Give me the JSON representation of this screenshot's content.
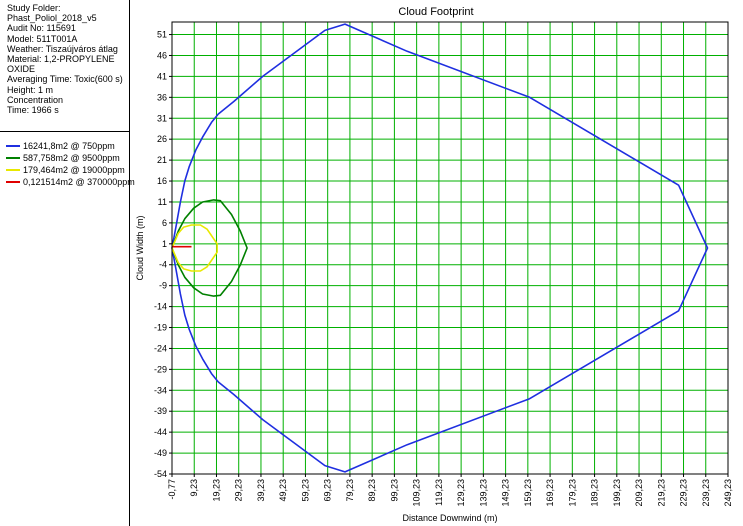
{
  "info_lines": [
    "Study Folder:",
    "Phast_Poliol_2018_v5",
    "Audit No: 115691",
    "Model: 511T001A",
    "Weather: Tiszaújváros átlag",
    "Material: 1,2-PROPYLENE",
    "OXIDE",
    "Averaging Time: Toxic(600 s)",
    "Height: 1 m",
    "Concentration",
    "Time: 1966 s"
  ],
  "chart_data": {
    "type": "line",
    "title": "Cloud Footprint",
    "xlabel": "Distance Downwind (m)",
    "ylabel": "Cloud Width (m)",
    "xlim": [
      -0.77,
      249.23
    ],
    "ylim": [
      -54,
      54
    ],
    "x_ticks": [
      -0.77,
      9.23,
      19.23,
      29.23,
      39.23,
      49.23,
      59.23,
      69.23,
      79.23,
      89.23,
      99.23,
      109.23,
      119.23,
      129.23,
      139.23,
      149.23,
      159.23,
      169.23,
      179.23,
      189.23,
      199.23,
      209.23,
      219.23,
      229.23,
      239.23,
      249.23
    ],
    "x_tick_labels": [
      "-0,77",
      "9,23",
      "19,23",
      "29,23",
      "39,23",
      "49,23",
      "59,23",
      "69,23",
      "79,23",
      "89,23",
      "99,23",
      "109,23",
      "119,23",
      "129,23",
      "139,23",
      "149,23",
      "159,23",
      "169,23",
      "179,23",
      "189,23",
      "199,23",
      "209,23",
      "219,23",
      "229,23",
      "239,23",
      "249,23"
    ],
    "y_ticks": [
      51,
      46,
      41,
      36,
      31,
      26,
      21,
      16,
      11,
      6,
      1,
      -4,
      -9,
      -14,
      -19,
      -24,
      -29,
      -34,
      -39,
      -44,
      -49,
      -54
    ],
    "grid": true,
    "grid_color": "#00b000",
    "series": [
      {
        "name": "16241,8m2 @ 750ppm",
        "color": "#1f2fe0",
        "x": [
          -0.77,
          1,
          3,
          5,
          7,
          10,
          13,
          17,
          20,
          27,
          40,
          68,
          77,
          105,
          160,
          227,
          240,
          227,
          160,
          105,
          77,
          68,
          40,
          27,
          20,
          17,
          13,
          10,
          7,
          5,
          3,
          1,
          -0.77
        ],
        "y": [
          0,
          5,
          11,
          16,
          19.5,
          23.5,
          26.5,
          30,
          32,
          35,
          41,
          52,
          53.5,
          47,
          36,
          15,
          0,
          -15,
          -36,
          -47,
          -53.5,
          -52,
          -41,
          -35,
          -32,
          -30,
          -26.5,
          -23.5,
          -19.5,
          -16,
          -11,
          -5,
          0
        ]
      },
      {
        "name": "587,758m2 @ 9500ppm",
        "color": "#008000",
        "x": [
          -0.77,
          2,
          5,
          9,
          13,
          18,
          21,
          26,
          30,
          33,
          30,
          26,
          21,
          18,
          13,
          9,
          5,
          2,
          -0.77
        ],
        "y": [
          0,
          4,
          7,
          9.5,
          11,
          11.5,
          11.3,
          8,
          4,
          0,
          -4,
          -8,
          -11.3,
          -11.5,
          -11,
          -9.5,
          -7,
          -4,
          0
        ]
      },
      {
        "name": "179,464m2 @ 19000ppm",
        "color": "#e8e800",
        "x": [
          -0.77,
          2,
          4.5,
          8,
          12,
          15,
          19.5,
          19.5,
          15,
          12,
          8,
          4.5,
          2,
          -0.77
        ],
        "y": [
          0,
          3.5,
          5,
          5.5,
          5.5,
          4.5,
          1,
          -1,
          -4.5,
          -5.5,
          -5.5,
          -5,
          -3.5,
          0
        ]
      },
      {
        "name": "0,121514m2 @ 370000ppm",
        "color": "#e00000",
        "x": [
          -0.77,
          8
        ],
        "y": [
          0.3,
          0.3
        ]
      }
    ]
  }
}
